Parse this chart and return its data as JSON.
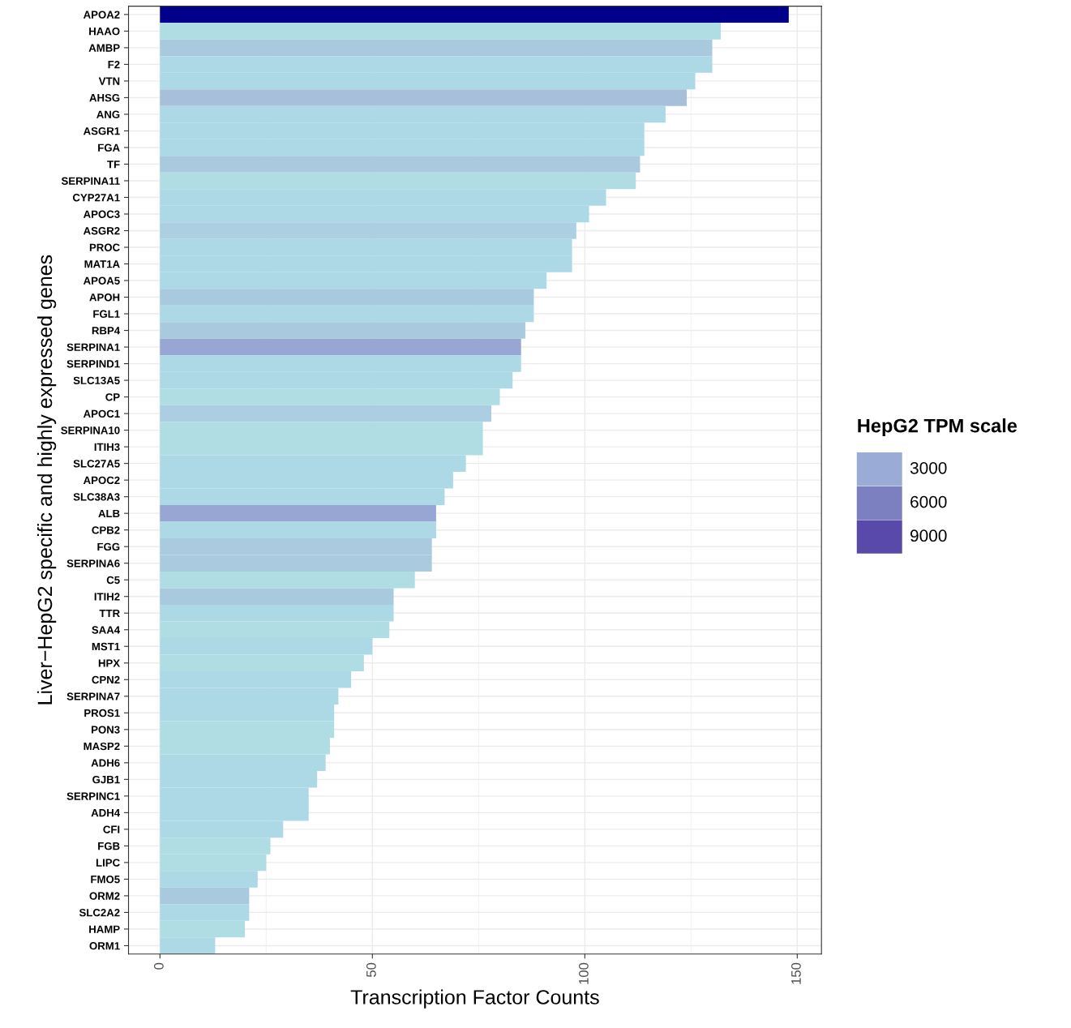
{
  "chart_data": {
    "type": "bar",
    "orientation": "horizontal",
    "xlabel": "Transcription Factor Counts",
    "ylabel": "Liver−HepG2 specific and highly expressed genes",
    "clabel": "HepG2 TPM scale",
    "cticks": [
      3000,
      6000,
      9000
    ],
    "categories": [
      "APOA2",
      "HAAO",
      "AMBP",
      "F2",
      "VTN",
      "AHSG",
      "ANG",
      "ASGR1",
      "FGA",
      "TF",
      "SERPINA11",
      "CYP27A1",
      "APOC3",
      "ASGR2",
      "PROC",
      "MAT1A",
      "APOA5",
      "APOH",
      "FGL1",
      "RBP4",
      "SERPINA1",
      "SERPIND1",
      "SLC13A5",
      "CP",
      "APOC1",
      "SERPINA10",
      "ITIH3",
      "SLC27A5",
      "APOC2",
      "SLC38A3",
      "ALB",
      "CPB2",
      "FGG",
      "SERPINA6",
      "C5",
      "ITIH2",
      "TTR",
      "SAA4",
      "MST1",
      "HPX",
      "CPN2",
      "SERPINA7",
      "PROS1",
      "PON3",
      "MASP2",
      "ADH6",
      "GJB1",
      "SERPINC1",
      "ADH4",
      "CFI",
      "FGB",
      "LIPC",
      "FMO5",
      "ORM2",
      "SLC2A2",
      "HAMP",
      "ORM1"
    ],
    "values": [
      148,
      132,
      130,
      130,
      126,
      124,
      119,
      114,
      114,
      113,
      112,
      105,
      101,
      98,
      97,
      97,
      91,
      88,
      88,
      86,
      85,
      85,
      83,
      80,
      78,
      76,
      76,
      72,
      69,
      67,
      65,
      65,
      64,
      64,
      60,
      55,
      55,
      54,
      50,
      48,
      45,
      42,
      41,
      41,
      40,
      39,
      37,
      35,
      35,
      29,
      26,
      25,
      23,
      21,
      21,
      20,
      13
    ],
    "colors": [
      "#00008b",
      "#b0dde3",
      "#a9cade",
      "#add8e6",
      "#add8e6",
      "#a7bfdb",
      "#add8e6",
      "#add8e6",
      "#add8e6",
      "#a9c9de",
      "#b0dde3",
      "#add8e6",
      "#add8e6",
      "#adcfe2",
      "#add8e6",
      "#add8e6",
      "#add8e6",
      "#a9c9de",
      "#add8e6",
      "#a9c9de",
      "#97a6d3",
      "#add8e6",
      "#add8e6",
      "#b0dde3",
      "#adcde2",
      "#b0dde3",
      "#b0dde3",
      "#add8e6",
      "#add8e6",
      "#add8e6",
      "#97a6d3",
      "#add8e6",
      "#aacbdf",
      "#aacbdf",
      "#b0dde3",
      "#a9c9de",
      "#add8e6",
      "#b0dde3",
      "#add8e6",
      "#b0dde3",
      "#add8e6",
      "#add8e6",
      "#add8e6",
      "#b0dde3",
      "#b0dde3",
      "#add8e6",
      "#add8e6",
      "#add8e6",
      "#add8e6",
      "#add8e6",
      "#b0dde3",
      "#b0dde3",
      "#add8e6",
      "#a9c9de",
      "#add8e6",
      "#b0dde3",
      "#add8e6"
    ],
    "xlim": [
      -7.4,
      155.7
    ],
    "xticks": [
      0,
      50,
      100,
      150
    ],
    "grid": true
  }
}
